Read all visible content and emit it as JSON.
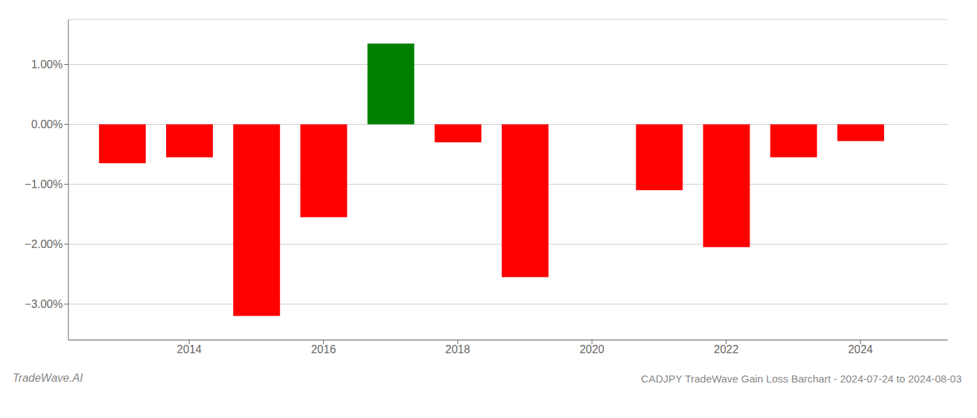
{
  "chart_data": {
    "type": "bar",
    "title": "CADJPY TradeWave Gain Loss Barchart - 2024-07-24 to 2024-08-03",
    "annotations": [
      "TradeWave.AI"
    ],
    "x": [
      2013,
      2014,
      2015,
      2016,
      2017,
      2018,
      2019,
      2021,
      2022,
      2023,
      2024
    ],
    "values": [
      -0.65,
      -0.55,
      -3.2,
      -1.55,
      1.35,
      -0.3,
      -2.55,
      -1.1,
      -2.05,
      -0.55,
      -0.28
    ],
    "colors": [
      "#ff0000",
      "#ff0000",
      "#ff0000",
      "#ff0000",
      "#008000",
      "#ff0000",
      "#ff0000",
      "#ff0000",
      "#ff0000",
      "#ff0000",
      "#ff0000"
    ],
    "xlim": [
      2012.2,
      2025.3
    ],
    "xticks": [
      2014,
      2016,
      2018,
      2020,
      2022,
      2024
    ],
    "ylim": [
      -3.6,
      1.75
    ],
    "yticks": [
      {
        "value": -3.0,
        "label": "−3.00%"
      },
      {
        "value": -2.0,
        "label": "−2.00%"
      },
      {
        "value": -1.0,
        "label": "−1.00%"
      },
      {
        "value": 0.0,
        "label": "0.00%"
      },
      {
        "value": 1.0,
        "label": "1.00%"
      }
    ],
    "grid": true
  }
}
